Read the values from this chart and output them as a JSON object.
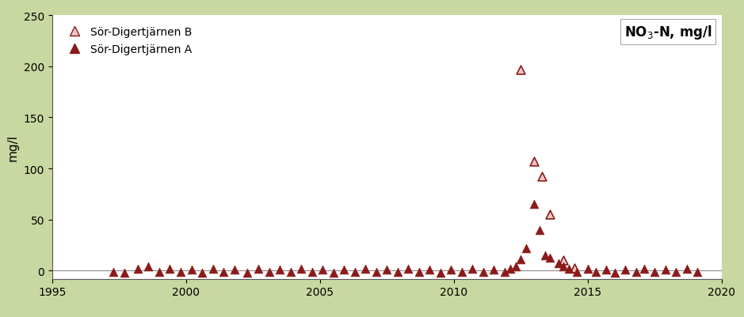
{
  "title_text": "NO₃-N, mg/l",
  "ylabel": "mg/l",
  "xlim": [
    1995,
    2020
  ],
  "ylim": [
    -8,
    250
  ],
  "yticks": [
    0,
    50,
    100,
    150,
    200,
    250
  ],
  "xticks": [
    1995,
    2000,
    2005,
    2010,
    2015,
    2020
  ],
  "bg_color": "#c8d8a0",
  "plot_bg": "#ffffff",
  "marker_color": "#8b1a1a",
  "marker_facecolor_open": "#f0c8c8",
  "series_B_label": "Sör-Digertjärnen B",
  "series_A_label": "Sör-Digertjärnen A",
  "series_B": {
    "x": [
      2012.5,
      2013.0,
      2013.3,
      2013.6,
      2014.1,
      2014.5
    ],
    "y": [
      197,
      107,
      92,
      55,
      10,
      3
    ]
  },
  "series_A": {
    "x": [
      1997.3,
      1997.7,
      1998.2,
      1998.6,
      1999.0,
      1999.4,
      1999.8,
      2000.2,
      2000.6,
      2001.0,
      2001.4,
      2001.8,
      2002.3,
      2002.7,
      2003.1,
      2003.5,
      2003.9,
      2004.3,
      2004.7,
      2005.1,
      2005.5,
      2005.9,
      2006.3,
      2006.7,
      2007.1,
      2007.5,
      2007.9,
      2008.3,
      2008.7,
      2009.1,
      2009.5,
      2009.9,
      2010.3,
      2010.7,
      2011.1,
      2011.5,
      2011.9,
      2012.1,
      2012.3,
      2012.5,
      2012.7,
      2013.0,
      2013.2,
      2013.4,
      2013.6,
      2013.9,
      2014.1,
      2014.3,
      2014.6,
      2015.0,
      2015.3,
      2015.7,
      2016.0,
      2016.4,
      2016.8,
      2017.1,
      2017.5,
      2017.9,
      2018.3,
      2018.7,
      2019.1
    ],
    "y": [
      -1,
      -2,
      2,
      4,
      -1,
      2,
      -1,
      1,
      -2,
      2,
      -1,
      1,
      -2,
      2,
      -1,
      1,
      -1,
      2,
      -1,
      1,
      -2,
      1,
      -1,
      2,
      -1,
      1,
      -1,
      2,
      -1,
      1,
      -2,
      1,
      -1,
      2,
      -1,
      1,
      -1,
      2,
      4,
      11,
      22,
      65,
      40,
      15,
      13,
      7,
      4,
      2,
      -1,
      2,
      -1,
      1,
      -2,
      1,
      -1,
      2,
      -1,
      1,
      -1,
      2,
      -1
    ]
  },
  "marker_size": 60,
  "marker_size_legend": 9
}
